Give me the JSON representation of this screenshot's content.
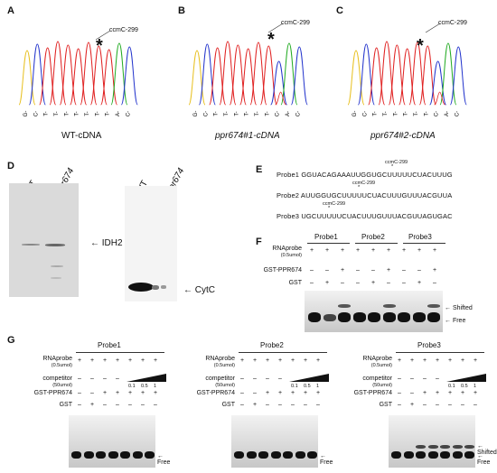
{
  "panels": {
    "A": {
      "label": "A",
      "annotation": "ccmC-299",
      "star": "*",
      "caption": "WT-cDNA",
      "bases": [
        "G",
        "C",
        "T",
        "T",
        "T",
        "T",
        "T",
        "T",
        "T",
        "A",
        "C"
      ]
    },
    "B": {
      "label": "B",
      "annotation": "ccmC-299",
      "star": "*",
      "caption": "ppr674#1-cDNA",
      "bases": [
        "G",
        "C",
        "T",
        "T",
        "T",
        "T",
        "T",
        "T",
        "C",
        "A",
        "C"
      ]
    },
    "C": {
      "label": "C",
      "annotation": "ccmC-299",
      "star": "*",
      "caption": "ppr674#2-cDNA",
      "bases": [
        "G",
        "C",
        "T",
        "T",
        "T",
        "T",
        "T",
        "T",
        "C",
        "A",
        "C"
      ]
    },
    "D": {
      "label": "D",
      "left": {
        "lane1": "WT",
        "lane2": "ppr674",
        "marker": "IDH2"
      },
      "right": {
        "lane1": "WT",
        "lane2": "ppr674",
        "marker": "CytC"
      }
    },
    "E": {
      "label": "E",
      "probes": [
        {
          "name": "Probe1",
          "seq": "GGUACAGAAAUUGGUGCUUUUUCUACUUUG",
          "tag": "ccmC-299"
        },
        {
          "name": "Probe2",
          "seq": "AUUGGUGCUUUUUCUACUUUGUUUACGUUA",
          "tag": "ccmC-299"
        },
        {
          "name": "Probe3",
          "seq": "UGCUUUUUCUACUUUGUUUACGUUAGUGAC",
          "tag": "ccmC-299"
        }
      ]
    },
    "F": {
      "label": "F",
      "probes": [
        "Probe1",
        "Probe2",
        "Probe3"
      ],
      "rows": [
        {
          "name": "RNAprobe",
          "sub": "(0.5umol)",
          "marks": [
            "+",
            "+",
            "+",
            "+",
            "+",
            "+",
            "+",
            "+",
            "+"
          ]
        },
        {
          "name": "GST-PPR674",
          "sub": "",
          "marks": [
            "–",
            "–",
            "+",
            "–",
            "–",
            "+",
            "–",
            "–",
            "+"
          ]
        },
        {
          "name": "GST",
          "sub": "",
          "marks": [
            "–",
            "+",
            "–",
            "–",
            "+",
            "–",
            "–",
            "+",
            "–"
          ]
        }
      ],
      "shifted": "Shifted",
      "free": "Free"
    },
    "G": {
      "label": "G",
      "gels": [
        {
          "probe": "Probe1",
          "rows": [
            {
              "name": "RNAprobe",
              "sub": "(0.5umol)",
              "marks": [
                "+",
                "+",
                "+",
                "+",
                "+",
                "+",
                "+"
              ]
            },
            {
              "name": "competitor",
              "sub": "(50umol)",
              "marks": [
                "–",
                "–",
                "–",
                "–",
                "",
                "",
                ""
              ]
            },
            {
              "name": "GST-PPR674",
              "sub": "",
              "marks": [
                "–",
                "–",
                "+",
                "+",
                "+",
                "+",
                "+"
              ]
            },
            {
              "name": "GST",
              "sub": "",
              "marks": [
                "–",
                "+",
                "–",
                "–",
                "–",
                "–",
                "–"
              ]
            }
          ],
          "ratios": [
            "0.1",
            "0.5",
            "1"
          ],
          "free": "Free",
          "shifted": ""
        },
        {
          "probe": "Probe2",
          "rows": [
            {
              "name": "RNAprobe",
              "sub": "(0.5umol)",
              "marks": [
                "+",
                "+",
                "+",
                "+",
                "+",
                "+",
                "+"
              ]
            },
            {
              "name": "competitor",
              "sub": "(50umol)",
              "marks": [
                "–",
                "–",
                "–",
                "–",
                "",
                "",
                ""
              ]
            },
            {
              "name": "GST-PPR674",
              "sub": "",
              "marks": [
                "–",
                "–",
                "+",
                "+",
                "+",
                "+",
                "+"
              ]
            },
            {
              "name": "GST",
              "sub": "",
              "marks": [
                "–",
                "+",
                "–",
                "–",
                "–",
                "–",
                "–"
              ]
            }
          ],
          "ratios": [
            "0.1",
            "0.5",
            "1"
          ],
          "free": "Free",
          "shifted": ""
        },
        {
          "probe": "Probe3",
          "rows": [
            {
              "name": "RNAprobe",
              "sub": "(0.5umol)",
              "marks": [
                "+",
                "+",
                "+",
                "+",
                "+",
                "+",
                "+"
              ]
            },
            {
              "name": "competitor",
              "sub": "(50umol)",
              "marks": [
                "–",
                "–",
                "–",
                "–",
                "",
                "",
                ""
              ]
            },
            {
              "name": "GST-PPR674",
              "sub": "",
              "marks": [
                "–",
                "–",
                "+",
                "+",
                "+",
                "+",
                "+"
              ]
            },
            {
              "name": "GST",
              "sub": "",
              "marks": [
                "–",
                "+",
                "–",
                "–",
                "–",
                "–",
                "–"
              ]
            }
          ],
          "ratios": [
            "0.1",
            "0.5",
            "1"
          ],
          "free": "Free",
          "shifted": "Shifted"
        }
      ]
    }
  },
  "colors": {
    "A": "#22aa22",
    "C": "#2233cc",
    "G": "#e8c020",
    "T": "#e02020"
  }
}
